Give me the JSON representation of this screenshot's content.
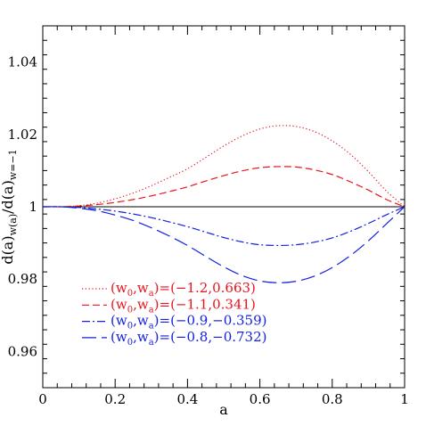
{
  "chart_data": {
    "type": "line",
    "xlabel": "a",
    "ylabel": {
      "main": "d(a)",
      "num_sub": "w(a)",
      "sep": "/",
      "den": "d(a)",
      "den_sub": "w=−1"
    },
    "xlim": [
      0,
      1
    ],
    "ylim": [
      0.95,
      1.05
    ],
    "xticks": [
      {
        "value": 0,
        "label": "0"
      },
      {
        "value": 0.2,
        "label": "0.2"
      },
      {
        "value": 0.4,
        "label": "0.4"
      },
      {
        "value": 0.6,
        "label": "0.6"
      },
      {
        "value": 0.8,
        "label": "0.8"
      },
      {
        "value": 1,
        "label": "1"
      }
    ],
    "yticks": [
      {
        "value": 0.96,
        "label": "0.96"
      },
      {
        "value": 0.98,
        "label": "0.98"
      },
      {
        "value": 1,
        "label": "1"
      },
      {
        "value": 1.02,
        "label": "1.02"
      },
      {
        "value": 1.04,
        "label": "1.04"
      }
    ],
    "grid": false,
    "legend_position": "bottom-left",
    "reference_line": {
      "y": 1,
      "color": "#000000"
    },
    "series": [
      {
        "label_prefix": "(w",
        "sub0": "0",
        "mid": ",w",
        "sub1": "a",
        "label_value": ")=(−1.2,0.663)",
        "color": "#e8141e",
        "dash": "dotted",
        "x": [
          0,
          0.05,
          0.1,
          0.15,
          0.2,
          0.25,
          0.3,
          0.35,
          0.4,
          0.45,
          0.5,
          0.55,
          0.6,
          0.65,
          0.7,
          0.75,
          0.8,
          0.85,
          0.9,
          0.95,
          1
        ],
        "y": [
          1.0,
          1.0,
          1.0003,
          1.001,
          1.0022,
          1.0038,
          1.0058,
          1.0081,
          1.0105,
          1.0136,
          1.0168,
          1.0195,
          1.0215,
          1.0224,
          1.0222,
          1.0208,
          1.0182,
          1.0145,
          1.0097,
          1.0043,
          1.0
        ]
      },
      {
        "label_prefix": "(w",
        "sub0": "0",
        "mid": ",w",
        "sub1": "a",
        "label_value": ")=(−1.1,0.341)",
        "color": "#e8141e",
        "dash": "short-dash",
        "x": [
          0,
          0.05,
          0.1,
          0.15,
          0.2,
          0.25,
          0.3,
          0.35,
          0.4,
          0.45,
          0.5,
          0.55,
          0.6,
          0.65,
          0.7,
          0.75,
          0.8,
          0.85,
          0.9,
          0.95,
          1
        ],
        "y": [
          1.0,
          1.0,
          1.0002,
          1.0006,
          1.0012,
          1.002,
          1.003,
          1.0042,
          1.0055,
          1.0071,
          1.0086,
          1.0099,
          1.0108,
          1.0111,
          1.011,
          1.0102,
          1.0089,
          1.0069,
          1.0046,
          1.002,
          1.0
        ]
      },
      {
        "label_prefix": "(w",
        "sub0": "0",
        "mid": ",w",
        "sub1": "a",
        "label_value": ")=(−0.9,−0.359)",
        "color": "#1420e0",
        "dash": "dash-dot",
        "x": [
          0,
          0.05,
          0.1,
          0.15,
          0.2,
          0.25,
          0.3,
          0.35,
          0.4,
          0.45,
          0.5,
          0.55,
          0.6,
          0.65,
          0.7,
          0.75,
          0.8,
          0.85,
          0.9,
          0.95,
          1
        ],
        "y": [
          1.0,
          1.0,
          0.9998,
          0.9994,
          0.9988,
          0.998,
          0.997,
          0.9958,
          0.9945,
          0.993,
          0.9915,
          0.9903,
          0.9895,
          0.9893,
          0.9895,
          0.9902,
          0.9914,
          0.9932,
          0.9954,
          0.9978,
          1.0
        ]
      },
      {
        "label_prefix": "(w",
        "sub0": "0",
        "mid": ",w",
        "sub1": "a",
        "label_value": ")=(−0.8,−0.732)",
        "color": "#1420e0",
        "dash": "long-dash",
        "x": [
          0,
          0.05,
          0.1,
          0.15,
          0.2,
          0.25,
          0.3,
          0.35,
          0.4,
          0.45,
          0.5,
          0.55,
          0.6,
          0.65,
          0.7,
          0.75,
          0.8,
          0.85,
          0.9,
          0.95,
          1
        ],
        "y": [
          1.0,
          1.0,
          0.9996,
          0.9989,
          0.9977,
          0.9962,
          0.9942,
          0.9919,
          0.9893,
          0.9863,
          0.9834,
          0.981,
          0.9795,
          0.979,
          0.9794,
          0.9808,
          0.9832,
          0.9865,
          0.9906,
          0.9953,
          1.0
        ]
      }
    ]
  }
}
